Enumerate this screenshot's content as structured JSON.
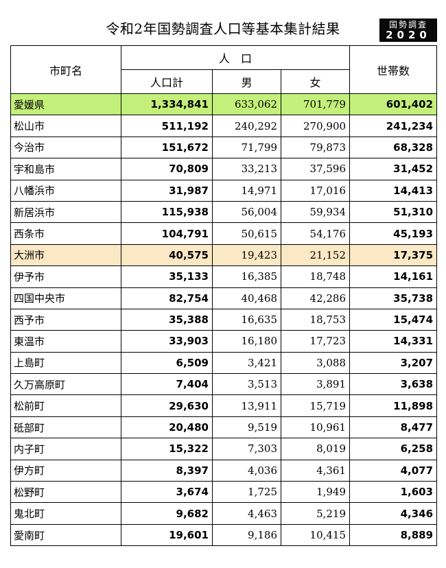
{
  "title": "令和2年国勢調査人口等基本集計結果",
  "logo": {
    "line1": "国勢調査",
    "line2": "2020"
  },
  "headers": {
    "city": "市町名",
    "population": "人　口",
    "total": "人口計",
    "male": "男",
    "female": "女",
    "households": "世帯数"
  },
  "rows": [
    {
      "name": "愛媛県",
      "total": "1,334,841",
      "male": "633,062",
      "female": "701,779",
      "households": "601,402",
      "highlight": "pref"
    },
    {
      "name": "松山市",
      "total": "511,192",
      "male": "240,292",
      "female": "270,900",
      "households": "241,234"
    },
    {
      "name": "今治市",
      "total": "151,672",
      "male": "71,799",
      "female": "79,873",
      "households": "68,328"
    },
    {
      "name": "宇和島市",
      "total": "70,809",
      "male": "33,213",
      "female": "37,596",
      "households": "31,452"
    },
    {
      "name": "八幡浜市",
      "total": "31,987",
      "male": "14,971",
      "female": "17,016",
      "households": "14,413"
    },
    {
      "name": "新居浜市",
      "total": "115,938",
      "male": "56,004",
      "female": "59,934",
      "households": "51,310"
    },
    {
      "name": "西条市",
      "total": "104,791",
      "male": "50,615",
      "female": "54,176",
      "households": "45,193"
    },
    {
      "name": "大洲市",
      "total": "40,575",
      "male": "19,423",
      "female": "21,152",
      "households": "17,375",
      "highlight": "hl"
    },
    {
      "name": "伊予市",
      "total": "35,133",
      "male": "16,385",
      "female": "18,748",
      "households": "14,161"
    },
    {
      "name": "四国中央市",
      "total": "82,754",
      "male": "40,468",
      "female": "42,286",
      "households": "35,738"
    },
    {
      "name": "西予市",
      "total": "35,388",
      "male": "16,635",
      "female": "18,753",
      "households": "15,474"
    },
    {
      "name": "東温市",
      "total": "33,903",
      "male": "16,180",
      "female": "17,723",
      "households": "14,331"
    },
    {
      "name": "上島町",
      "total": "6,509",
      "male": "3,421",
      "female": "3,088",
      "households": "3,207"
    },
    {
      "name": "久万高原町",
      "total": "7,404",
      "male": "3,513",
      "female": "3,891",
      "households": "3,638"
    },
    {
      "name": "松前町",
      "total": "29,630",
      "male": "13,911",
      "female": "15,719",
      "households": "11,898"
    },
    {
      "name": "砥部町",
      "total": "20,480",
      "male": "9,519",
      "female": "10,961",
      "households": "8,477"
    },
    {
      "name": "内子町",
      "total": "15,322",
      "male": "7,303",
      "female": "8,019",
      "households": "6,258"
    },
    {
      "name": "伊方町",
      "total": "8,397",
      "male": "4,036",
      "female": "4,361",
      "households": "4,077"
    },
    {
      "name": "松野町",
      "total": "3,674",
      "male": "1,725",
      "female": "1,949",
      "households": "1,603"
    },
    {
      "name": "鬼北町",
      "total": "9,682",
      "male": "4,463",
      "female": "5,219",
      "households": "4,346"
    },
    {
      "name": "愛南町",
      "total": "19,601",
      "male": "9,186",
      "female": "10,415",
      "households": "8,889"
    }
  ],
  "colors": {
    "pref_bg": "#c3f07a",
    "highlight_bg": "#fbe8c4"
  }
}
